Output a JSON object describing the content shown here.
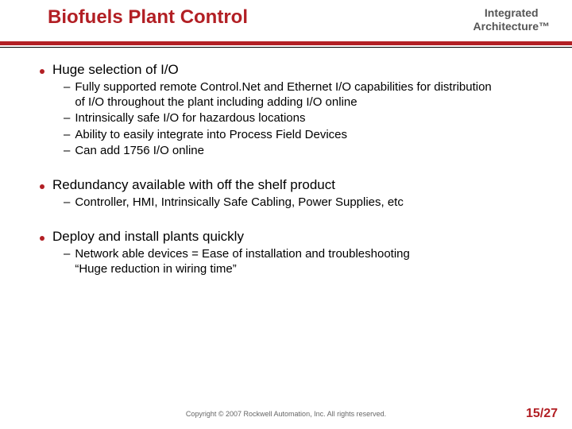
{
  "header": {
    "title": "Biofuels Plant Control",
    "subtitle_line1": "Integrated",
    "subtitle_line2": "Architecture™"
  },
  "colors": {
    "accent": "#b21f24",
    "text": "#000000",
    "subtitle": "#555555",
    "copyright": "#666666",
    "background": "#ffffff"
  },
  "bullets": [
    {
      "text": "Huge selection of I/O",
      "subs": [
        "Fully supported remote Control.Net and Ethernet I/O capabilities for distribution\nof I/O throughout the plant including adding I/O online",
        "Intrinsically safe I/O for hazardous locations",
        "Ability to easily integrate into Process Field Devices",
        "Can add 1756 I/O online"
      ]
    },
    {
      "text": "Redundancy available with off the shelf product",
      "subs": [
        "Controller, HMI, Intrinsically Safe Cabling, Power Supplies, etc"
      ]
    },
    {
      "text": "Deploy and install plants quickly",
      "subs": [
        "Network able devices = Ease of installation and troubleshooting\n“Huge reduction in wiring time”"
      ]
    }
  ],
  "footer": {
    "copyright": "Copyright © 2007 Rockwell Automation, Inc. All rights reserved.",
    "page": "15/27"
  }
}
